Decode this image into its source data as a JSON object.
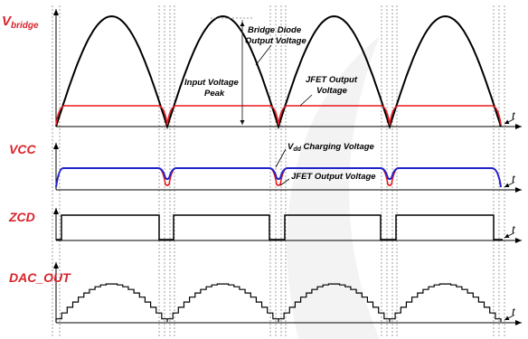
{
  "signals": {
    "vbridge": {
      "main": "V",
      "sub": "bridge"
    },
    "vcc": "VCC",
    "zcd": "ZCD",
    "dac_out": "DAC_OUT"
  },
  "axis_label": "t",
  "annotations": {
    "bridge_diode_line1": "Bridge Diode",
    "bridge_diode_line2": "Output Voltage",
    "input_peak_line1": "Input Voltage",
    "input_peak_line2": "Peak",
    "jfet_output_line1": "JFET Output",
    "jfet_output_line2": "Voltage",
    "vdd_charging_main": "V",
    "vdd_charging_sub": "dd",
    "vdd_charging_rest": " Charging Voltage",
    "jfet_output_vcc": "JFET Output Voltage"
  },
  "colors": {
    "label_red": "#d8232a",
    "jfet_red": "#e8191f",
    "vdd_blue": "#2222cc",
    "waveform": "#000000",
    "guide_grey": "#888888"
  }
}
